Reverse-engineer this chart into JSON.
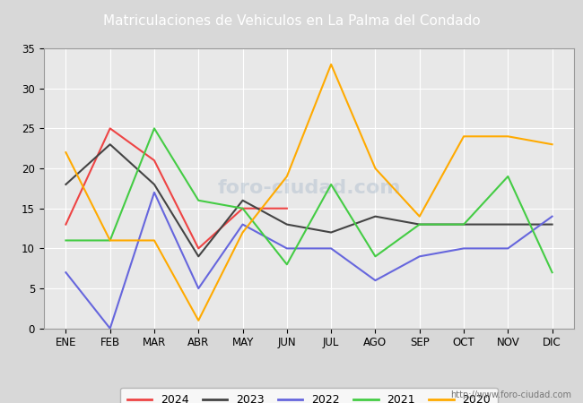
{
  "title": "Matriculaciones de Vehiculos en La Palma del Condado",
  "title_bg_color": "#4a7fc1",
  "title_text_color": "#ffffff",
  "months": [
    "ENE",
    "FEB",
    "MAR",
    "ABR",
    "MAY",
    "JUN",
    "JUL",
    "AGO",
    "SEP",
    "OCT",
    "NOV",
    "DIC"
  ],
  "series": {
    "2024": {
      "color": "#ee4444",
      "data": [
        13,
        25,
        21,
        10,
        15,
        15,
        null,
        null,
        null,
        null,
        null,
        null
      ]
    },
    "2023": {
      "color": "#444444",
      "data": [
        18,
        23,
        18,
        9,
        16,
        13,
        12,
        14,
        13,
        13,
        13,
        13
      ]
    },
    "2022": {
      "color": "#6666dd",
      "data": [
        7,
        0,
        17,
        5,
        13,
        10,
        10,
        6,
        9,
        10,
        10,
        14
      ]
    },
    "2021": {
      "color": "#44cc44",
      "data": [
        11,
        11,
        25,
        16,
        15,
        8,
        18,
        9,
        13,
        13,
        19,
        7
      ]
    },
    "2020": {
      "color": "#ffaa00",
      "data": [
        22,
        11,
        11,
        1,
        12,
        19,
        33,
        20,
        14,
        24,
        24,
        23
      ]
    }
  },
  "ylim": [
    0,
    35
  ],
  "yticks": [
    0,
    5,
    10,
    15,
    20,
    25,
    30,
    35
  ],
  "outer_bg_color": "#d8d8d8",
  "plot_bg_color": "#e8e8e8",
  "grid_color": "#ffffff",
  "watermark_center": "foro-ciudad.com",
  "watermark_url": "http://www.foro-ciudad.com",
  "legend_order": [
    "2024",
    "2023",
    "2022",
    "2021",
    "2020"
  ]
}
